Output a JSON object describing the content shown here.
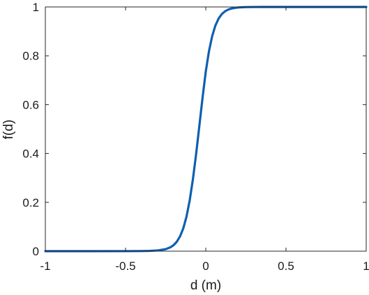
{
  "chart_data": {
    "type": "line",
    "title": "",
    "xlabel": "d (m)",
    "ylabel": "f(d)",
    "xlim": [
      -1,
      1
    ],
    "ylim": [
      0,
      1
    ],
    "x_ticks": [
      -1,
      -0.5,
      0,
      0.5,
      1
    ],
    "x_tick_labels": [
      "-1",
      "-0.5",
      "0",
      "0.5",
      "1"
    ],
    "y_ticks": [
      0,
      0.2,
      0.4,
      0.6,
      0.8,
      1
    ],
    "y_tick_labels": [
      "0",
      "0.2",
      "0.4",
      "0.6",
      "0.8",
      "1"
    ],
    "grid": false,
    "box": true,
    "series": [
      {
        "color": "#0e5fb0",
        "x": [
          -1,
          -0.5,
          -0.4,
          -0.35,
          -0.3,
          -0.25,
          -0.22,
          -0.2,
          -0.18,
          -0.16,
          -0.14,
          -0.12,
          -0.1,
          -0.08,
          -0.06,
          -0.04,
          -0.02,
          0,
          0.02,
          0.04,
          0.06,
          0.08,
          0.1,
          0.12,
          0.14,
          0.16,
          0.18,
          0.2,
          0.22,
          0.25,
          0.3,
          0.35,
          0.4,
          0.5,
          1
        ],
        "y": [
          0,
          0.0001,
          0.0005,
          0.0012,
          0.0031,
          0.0082,
          0.0159,
          0.025,
          0.0392,
          0.0611,
          0.0939,
          0.1419,
          0.2087,
          0.2951,
          0.3988,
          0.5133,
          0.6287,
          0.7357,
          0.8189,
          0.8808,
          0.924,
          0.9526,
          0.9709,
          0.9822,
          0.9893,
          0.9936,
          0.9961,
          0.9977,
          0.9986,
          0.9994,
          0.9998,
          1,
          1,
          1,
          1
        ]
      }
    ]
  }
}
